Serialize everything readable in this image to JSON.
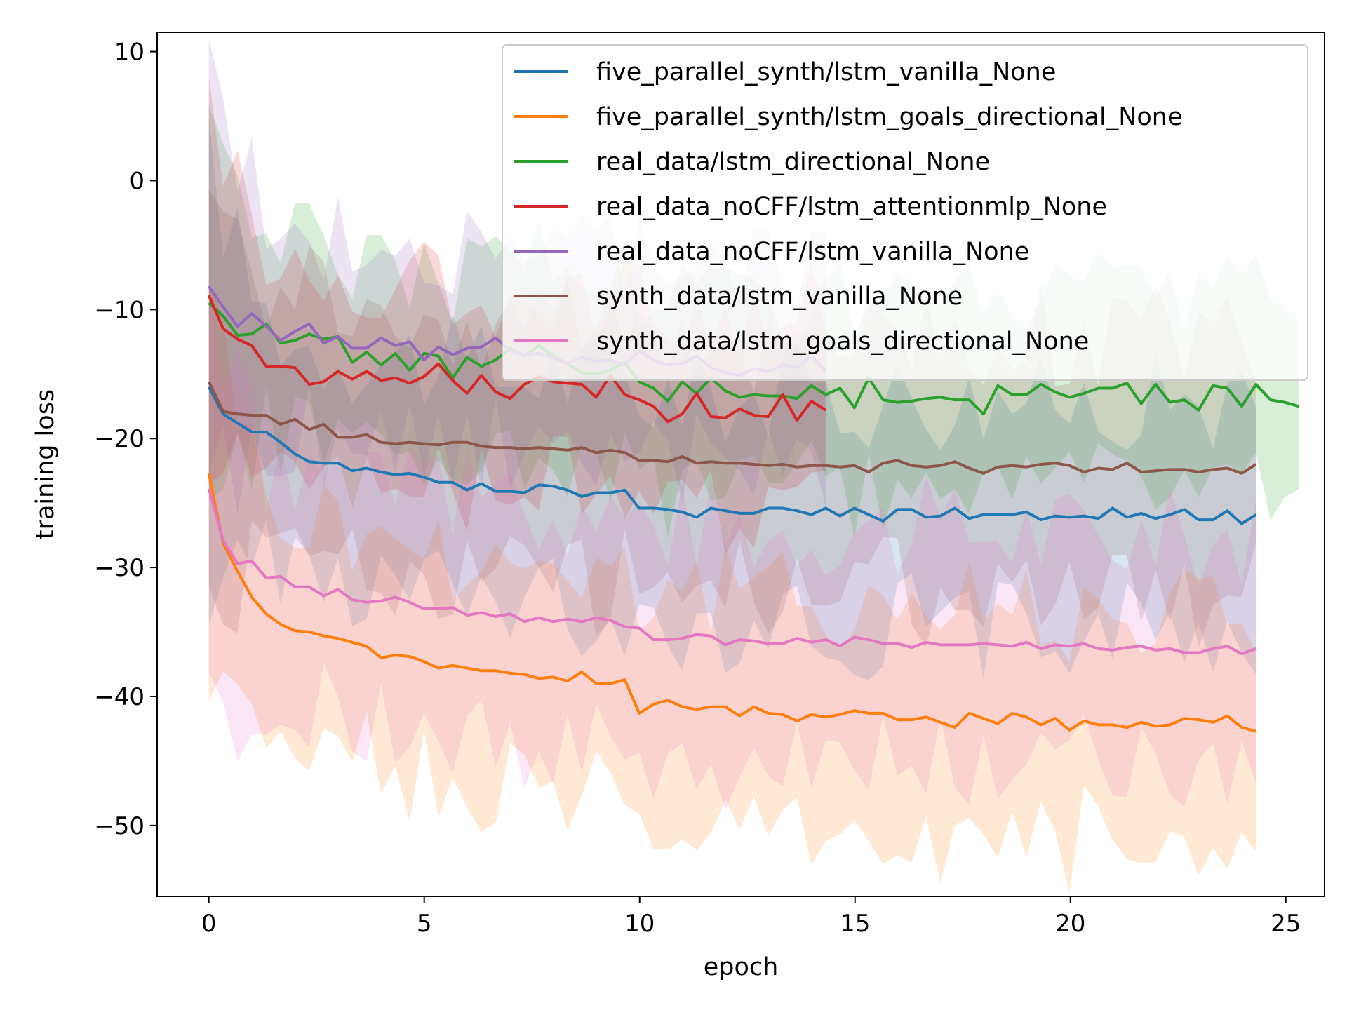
{
  "chart_data": {
    "type": "line",
    "xlabel": "epoch",
    "ylabel": "training loss",
    "xlim": [
      -1.2,
      25.9
    ],
    "ylim": [
      -55.5,
      11.5
    ],
    "xticks": [
      0,
      5,
      10,
      15,
      20,
      25
    ],
    "yticks": [
      10,
      0,
      -10,
      -20,
      -30,
      -40,
      -50
    ],
    "xtick_labels": [
      "0",
      "5",
      "10",
      "15",
      "20",
      "25"
    ],
    "ytick_labels": [
      "10",
      "0",
      "−10",
      "−20",
      "−30",
      "−40",
      "−50"
    ],
    "grid": false,
    "legend_position": "top-right",
    "band": "shaded region around each series mean",
    "series": [
      {
        "name": "five_parallel_synth/lstm_vanilla_None",
        "color": "#1f77b4",
        "band_spread": 9,
        "x_start": 0,
        "x_step": 0.333,
        "values": [
          -16,
          -18.1,
          -18.8,
          -19.5,
          -19.5,
          -20.3,
          -21.2,
          -21.8,
          -21.9,
          -21.9,
          -22.5,
          -22.3,
          -22.6,
          -22.8,
          -22.7,
          -23,
          -23.4,
          -23.4,
          -24,
          -23.5,
          -24.1,
          -24.1,
          -24.2,
          -23.6,
          -23.7,
          -24,
          -24.5,
          -24.2,
          -24.2,
          -24,
          -25.4,
          -25.4,
          -25.5,
          -25.7,
          -26.1,
          -25.4,
          -25.6,
          -25.8,
          -25.8,
          -25.4,
          -25.4,
          -25.6,
          -25.9,
          -25.4,
          -26,
          -25.4,
          -25.9,
          -26.4,
          -25.5,
          -25.5,
          -26.1,
          -26,
          -25.4,
          -26.2,
          -25.9,
          -25.9,
          -25.9,
          -25.7,
          -26.3,
          -26,
          -26.1,
          -26,
          -26.2,
          -25.4,
          -26.1,
          -25.8,
          -26.2,
          -25.9,
          -25.5,
          -26.3,
          -26.3,
          -25.6,
          -26.6,
          -25.9
        ]
      },
      {
        "name": "five_parallel_synth/lstm_goals_directional_None",
        "color": "#ff7f0e",
        "band_spread": 9,
        "x_start": 0,
        "x_step": 0.333,
        "values": [
          -22.7,
          -28.1,
          -30.3,
          -32.3,
          -33.6,
          -34.4,
          -34.9,
          -35,
          -35.3,
          -35.5,
          -35.8,
          -36.1,
          -37,
          -36.8,
          -36.9,
          -37.3,
          -37.8,
          -37.6,
          -37.8,
          -38,
          -38,
          -38.2,
          -38.3,
          -38.6,
          -38.5,
          -38.8,
          -38.1,
          -39,
          -39,
          -38.7,
          -41.3,
          -40.6,
          -40.3,
          -40.8,
          -41,
          -40.8,
          -40.8,
          -41.5,
          -40.8,
          -41.3,
          -41.4,
          -41.9,
          -41.4,
          -41.6,
          -41.4,
          -41.1,
          -41.3,
          -41.3,
          -41.8,
          -41.8,
          -41.6,
          -42,
          -42.4,
          -41.3,
          -41.7,
          -42.1,
          -41.3,
          -41.6,
          -42.2,
          -41.7,
          -42.6,
          -41.9,
          -42.2,
          -42.2,
          -42.4,
          -42,
          -42.3,
          -42.2,
          -41.7,
          -41.8,
          -42,
          -41.5,
          -42.4,
          -42.7
        ]
      },
      {
        "name": "real_data/lstm_directional_None",
        "color": "#2ca02c",
        "band_spread": 7.5,
        "x_start": 0,
        "x_step": 0.333,
        "values": [
          -9.5,
          -10.5,
          -12,
          -11.9,
          -11.1,
          -12.6,
          -12.4,
          -11.9,
          -12.3,
          -12.1,
          -14.1,
          -13.3,
          -14.3,
          -13.4,
          -14.7,
          -13.4,
          -13.6,
          -15.3,
          -13.7,
          -14.4,
          -13.9,
          -13,
          -13.6,
          -12.8,
          -13.6,
          -14.2,
          -14.9,
          -15,
          -14.7,
          -14.1,
          -15.6,
          -16.1,
          -17.1,
          -15.6,
          -16.5,
          -15.3,
          -16.3,
          -16.8,
          -16.6,
          -16.7,
          -16.7,
          -16.9,
          -15.9,
          -16.6,
          -16.1,
          -17.6,
          -15.3,
          -17,
          -17.2,
          -17.1,
          -16.9,
          -16.8,
          -17,
          -17,
          -18.1,
          -15.9,
          -16.6,
          -16.6,
          -15.8,
          -16.4,
          -16.8,
          -16.5,
          -16.1,
          -16.1,
          -15.7,
          -17.3,
          -15.8,
          -17.2,
          -17,
          -17.8,
          -15.9,
          -16.1,
          -17.5,
          -15.8,
          -17,
          -17.2,
          -17.5
        ]
      },
      {
        "name": "real_data_noCFF/lstm_attentionmlp_None",
        "color": "#d62728",
        "band_spread": 7.5,
        "x_start": 0,
        "x_step": 0.333,
        "values": [
          -8.9,
          -11.5,
          -12.3,
          -12.8,
          -14.4,
          -14.4,
          -14.5,
          -15.8,
          -15.6,
          -14.8,
          -15.4,
          -14.8,
          -15.5,
          -15.3,
          -15.7,
          -15.2,
          -14.2,
          -15.5,
          -16.5,
          -15.1,
          -16.4,
          -16.9,
          -15.8,
          -15.2,
          -15.6,
          -15.7,
          -15.8,
          -16.8,
          -15.1,
          -16.6,
          -17,
          -17.5,
          -18.7,
          -18.1,
          -16.5,
          -18.3,
          -18.4,
          -17.7,
          -18.2,
          -18.3,
          -16.6,
          -18.6,
          -17.1,
          -17.8
        ]
      },
      {
        "name": "real_data_noCFF/lstm_vanilla_None",
        "color": "#9467bd",
        "band_spread": 8,
        "x_start": 0,
        "x_step": 0.333,
        "values": [
          -8.2,
          -9.8,
          -11.3,
          -10.3,
          -11.3,
          -12.4,
          -11.7,
          -11.1,
          -12.6,
          -12.1,
          -13,
          -13,
          -12.2,
          -12.8,
          -12.5,
          -13.9,
          -12.9,
          -13.5,
          -13,
          -12.9,
          -12.2,
          -13.2,
          -13.5,
          -13.4,
          -13.7,
          -14.2,
          -13.7,
          -14,
          -13.9,
          -14.3,
          -13.2,
          -13.9,
          -14.3,
          -14.2,
          -13.6,
          -14.5,
          -14.9,
          -15.1,
          -14.6,
          -14.8,
          -14.3,
          -14.5,
          -13.6,
          -14.8
        ]
      },
      {
        "name": "synth_data/lstm_vanilla_None",
        "color": "#8c564b",
        "band_spread": 10,
        "x_start": 0,
        "x_step": 0.333,
        "values": [
          -15.6,
          -17.9,
          -18.1,
          -18.2,
          -18.2,
          -18.9,
          -18.5,
          -19.3,
          -18.9,
          -19.9,
          -19.9,
          -19.7,
          -20.3,
          -20.4,
          -20.3,
          -20.4,
          -20.5,
          -20.3,
          -20.3,
          -20.6,
          -20.7,
          -20.7,
          -20.8,
          -20.7,
          -20.8,
          -20.9,
          -20.7,
          -21.1,
          -20.9,
          -21.1,
          -21.7,
          -21.7,
          -21.8,
          -21.4,
          -21.9,
          -21.8,
          -21.9,
          -21.9,
          -22,
          -22.1,
          -22,
          -22.2,
          -22.1,
          -22.1,
          -22.2,
          -22.1,
          -22.6,
          -21.9,
          -21.7,
          -22.1,
          -22.2,
          -22.1,
          -21.8,
          -22.3,
          -22.7,
          -22.2,
          -22.1,
          -22.2,
          -22,
          -21.9,
          -22.1,
          -22.6,
          -22.3,
          -22.4,
          -21.9,
          -22.6,
          -22.5,
          -22.4,
          -22.4,
          -22.6,
          -22.4,
          -22.3,
          -22.7,
          -22
        ]
      },
      {
        "name": "synth_data/lstm_goals_directional_None",
        "color": "#e377c2",
        "band_spread": 9,
        "x_start": 0,
        "x_step": 0.333,
        "values": [
          -23.9,
          -27.9,
          -29.7,
          -29.5,
          -30.8,
          -30.7,
          -31.5,
          -31.5,
          -32.2,
          -31.7,
          -32.5,
          -32.7,
          -32.6,
          -32.3,
          -32.7,
          -33.2,
          -33.2,
          -33.1,
          -33.7,
          -33.5,
          -33.8,
          -33.6,
          -34.2,
          -33.9,
          -34.2,
          -34,
          -34.2,
          -33.9,
          -34.1,
          -34.6,
          -34.7,
          -35.6,
          -35.6,
          -35.5,
          -35.2,
          -35.3,
          -36,
          -35.6,
          -35.7,
          -35.9,
          -35.9,
          -35.5,
          -35.8,
          -35.6,
          -36.1,
          -35.4,
          -35.6,
          -35.9,
          -35.9,
          -36.2,
          -35.8,
          -36,
          -36,
          -36,
          -35.9,
          -36,
          -36.1,
          -35.8,
          -36.3,
          -36,
          -36.1,
          -35.9,
          -36.3,
          -36.4,
          -36.2,
          -36.1,
          -36.4,
          -36.3,
          -36.6,
          -36.6,
          -36.3,
          -36.1,
          -36.7,
          -36.3
        ]
      }
    ]
  }
}
